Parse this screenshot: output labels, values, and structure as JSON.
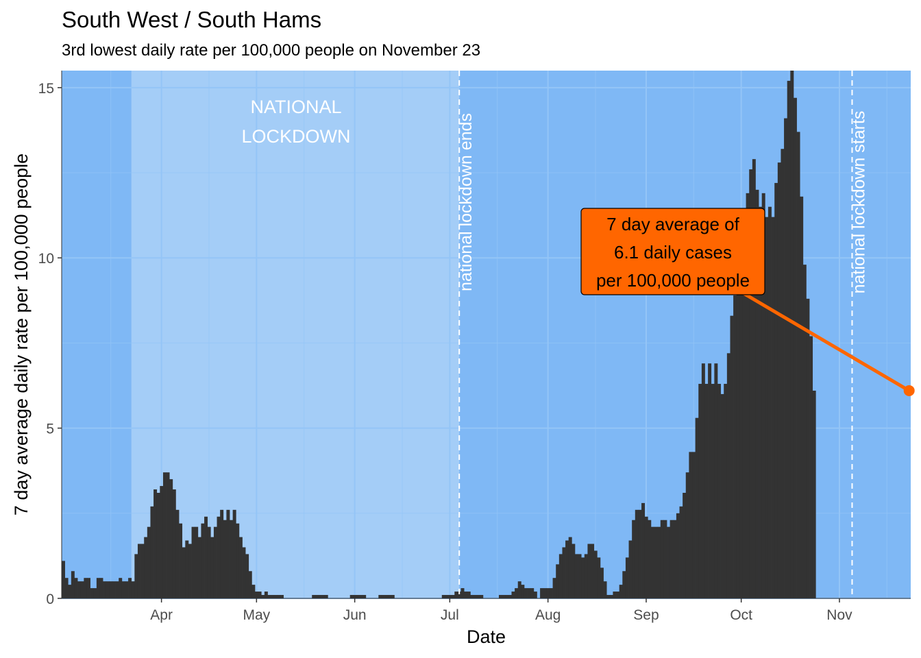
{
  "chart_data": {
    "type": "bar",
    "title": "South West / South Hams",
    "subtitle": "3rd lowest daily rate per 100,000 people on November 23",
    "xlabel": "Date",
    "ylabel": "7 day average daily rate per 100,000 people",
    "x_start": "2020-03-01",
    "x_end": "2020-11-23",
    "ylim": [
      0,
      15.5
    ],
    "y_ticks": [
      0,
      5,
      10,
      15
    ],
    "x_ticks": [
      {
        "date": "2020-04-01",
        "label": "Apr"
      },
      {
        "date": "2020-05-01",
        "label": "May"
      },
      {
        "date": "2020-06-01",
        "label": "Jun"
      },
      {
        "date": "2020-07-01",
        "label": "Jul"
      },
      {
        "date": "2020-08-01",
        "label": "Aug"
      },
      {
        "date": "2020-09-01",
        "label": "Sep"
      },
      {
        "date": "2020-10-01",
        "label": "Oct"
      },
      {
        "date": "2020-11-01",
        "label": "Nov"
      }
    ],
    "colors": {
      "panel_background": "#7fb8f5",
      "lockdown_band": "#a4cdf7",
      "bars": "#333333",
      "annotation": "#ff6600",
      "grid": "#94c5f7"
    },
    "lockdown_band": {
      "start": "2020-03-23",
      "end": "2020-07-04",
      "label": "NATIONAL LOCKDOWN"
    },
    "vlines": [
      {
        "date": "2020-07-04",
        "label": "national lockdown ends"
      },
      {
        "date": "2020-11-05",
        "label": "national lockdown starts"
      }
    ],
    "annotation": {
      "lines": [
        "7 day average of",
        "6.1 daily cases",
        "per 100,000 people"
      ],
      "date": "2020-11-23",
      "value": 6.1
    },
    "values": [
      1.1,
      0.6,
      0.4,
      0.8,
      0.6,
      0.5,
      0.5,
      0.6,
      0.6,
      0.3,
      0.3,
      0.6,
      0.6,
      0.5,
      0.5,
      0.5,
      0.5,
      0.5,
      0.6,
      0.5,
      0.5,
      0.6,
      0.5,
      1.3,
      1.6,
      1.6,
      1.8,
      2.1,
      2.7,
      3.2,
      3.1,
      3.3,
      3.7,
      3.7,
      3.5,
      3.2,
      2.6,
      2.2,
      1.5,
      1.7,
      1.6,
      2.1,
      2.1,
      1.8,
      2.2,
      2.4,
      2.1,
      1.8,
      2.1,
      2.4,
      2.6,
      2.3,
      2.6,
      2.3,
      2.6,
      2.2,
      1.8,
      1.5,
      1.3,
      0.8,
      0.4,
      0.2,
      0.2,
      0.1,
      0.2,
      0.1,
      0.1,
      0.1,
      0.1,
      0.1,
      0,
      0,
      0,
      0,
      0,
      0,
      0,
      0,
      0,
      0.1,
      0.1,
      0.1,
      0.1,
      0.1,
      0,
      0,
      0,
      0,
      0,
      0,
      0,
      0.1,
      0.1,
      0.1,
      0.1,
      0.1,
      0,
      0,
      0,
      0,
      0.1,
      0.1,
      0.1,
      0.1,
      0.1,
      0,
      0,
      0,
      0,
      0,
      0,
      0,
      0,
      0,
      0,
      0,
      0,
      0,
      0,
      0,
      0.1,
      0.1,
      0.1,
      0.1,
      0.2,
      0.2,
      0.3,
      0.2,
      0.2,
      0.1,
      0.1,
      0.1,
      0.1,
      0,
      0,
      0,
      0,
      0,
      0.1,
      0.1,
      0.1,
      0.1,
      0.2,
      0.3,
      0.5,
      0.4,
      0.3,
      0.3,
      0.3,
      0.2,
      0,
      0.3,
      0.3,
      0.3,
      0.3,
      0.6,
      1.0,
      1.3,
      1.5,
      1.7,
      1.8,
      1.6,
      1.3,
      1.3,
      1.2,
      1.3,
      1.6,
      1.6,
      1.4,
      1.2,
      0.9,
      0.5,
      0.1,
      0.1,
      0.2,
      0.2,
      0.4,
      0.8,
      1.2,
      1.7,
      2.3,
      2.6,
      2.6,
      2.8,
      2.4,
      2.3,
      2.1,
      2.1,
      2.1,
      2.3,
      2.3,
      2.1,
      2.3,
      2.3,
      2.5,
      2.7,
      3.1,
      3.7,
      4.3,
      4.3,
      5.3,
      6.3,
      6.9,
      6.3,
      6.9,
      6.3,
      6.9,
      6.3,
      6.0,
      6.3,
      7.2,
      8.3,
      8.9,
      10.2,
      10.5,
      11.1,
      11.9,
      12.6,
      12.9,
      12.0,
      11.5,
      11.9,
      11.2,
      11.5,
      11.2,
      12.2,
      12.8,
      13.2,
      14.1,
      15.2,
      15.5,
      14.7,
      13.7,
      11.8,
      9.8,
      8.8,
      7.7,
      6.1
    ]
  }
}
